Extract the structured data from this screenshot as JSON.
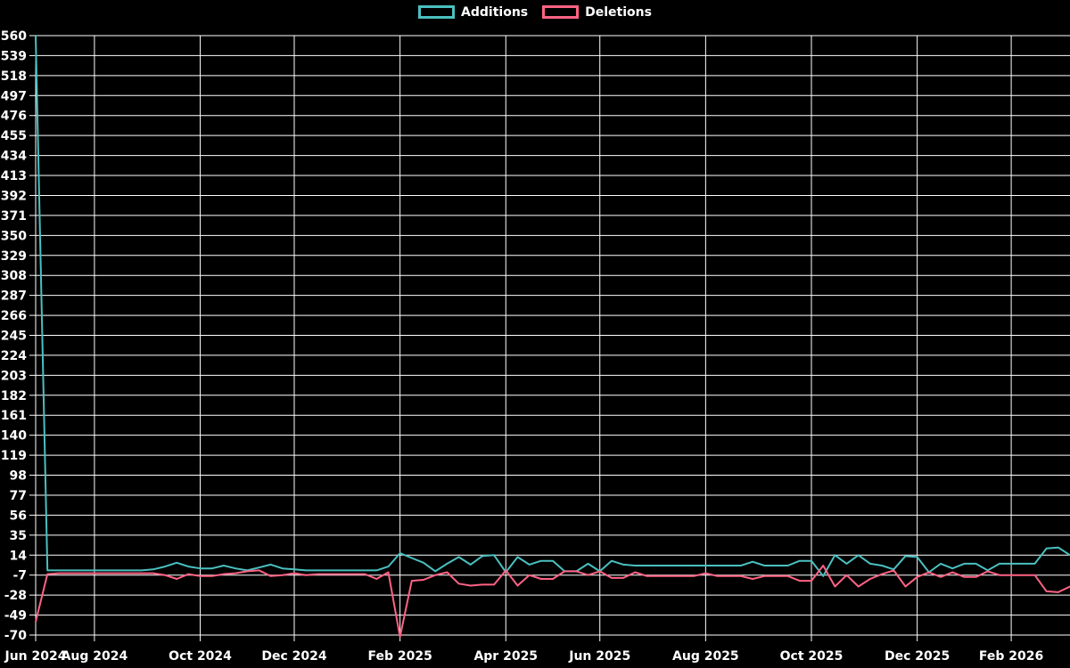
{
  "chart_data": {
    "type": "line",
    "title": "",
    "legend_position": "top",
    "grid": true,
    "background_color": "#000000",
    "grid_color": "#ffffff",
    "text_color": "#ffffff",
    "x_axis": {
      "unit": "week",
      "total_weeks": 89,
      "tick_labels": [
        "Jun 2024",
        "Aug 2024",
        "Oct 2024",
        "Dec 2024",
        "Feb 2025",
        "Apr 2025",
        "Jun 2025",
        "Aug 2025",
        "Oct 2025",
        "Dec 2025",
        "Feb 2026"
      ],
      "tick_weeks": [
        0,
        5,
        14,
        22,
        31,
        40,
        48,
        57,
        66,
        75,
        83
      ]
    },
    "y_axis": {
      "min": -70,
      "max": 560,
      "step": 21,
      "ticks": [
        560,
        539,
        518,
        497,
        476,
        455,
        434,
        413,
        392,
        371,
        350,
        329,
        308,
        287,
        266,
        245,
        224,
        203,
        182,
        161,
        140,
        119,
        98,
        77,
        56,
        35,
        14,
        -7,
        -28,
        -49,
        -70
      ]
    },
    "series": [
      {
        "name": "Additions",
        "color": "#4bc0c0",
        "values": [
          560,
          -2,
          -2,
          -2,
          -2,
          -2,
          -2,
          -2,
          -2,
          -2,
          -1,
          2,
          6,
          2,
          0,
          0,
          3,
          0,
          -2,
          1,
          4,
          0,
          -1,
          -2,
          -2,
          -2,
          -2,
          -2,
          -2,
          -2,
          2,
          16,
          11,
          6,
          -3,
          5,
          12,
          4,
          13,
          14,
          -4,
          12,
          4,
          8,
          8,
          -3,
          -3,
          5,
          -3,
          8,
          4,
          3,
          3,
          3,
          3,
          3,
          3,
          3,
          3,
          3,
          3,
          7,
          3,
          3,
          3,
          8,
          8,
          -8,
          14,
          5,
          14,
          5,
          3,
          -1,
          13,
          12,
          -4,
          5,
          0,
          5,
          5,
          -2,
          5,
          5,
          5,
          5,
          21,
          22,
          14
        ]
      },
      {
        "name": "Deletions",
        "color": "#ff6384",
        "values": [
          -56,
          -6,
          -5,
          -5,
          -5,
          -5,
          -5,
          -5,
          -5,
          -5,
          -5,
          -7,
          -11,
          -6,
          -8,
          -8,
          -6,
          -5,
          -3,
          -2,
          -8,
          -7,
          -5,
          -7,
          -6,
          -6,
          -6,
          -6,
          -6,
          -11,
          -4,
          -72,
          -13,
          -12,
          -7,
          -4,
          -16,
          -18,
          -17,
          -17,
          -2,
          -18,
          -7,
          -11,
          -11,
          -3,
          -3,
          -7,
          -3,
          -10,
          -10,
          -4,
          -8,
          -8,
          -8,
          -8,
          -8,
          -5,
          -8,
          -8,
          -8,
          -11,
          -8,
          -8,
          -8,
          -13,
          -13,
          3,
          -19,
          -7,
          -19,
          -11,
          -6,
          -2,
          -19,
          -9,
          -4,
          -9,
          -4,
          -9,
          -9,
          -3,
          -7,
          -7,
          -7,
          -7,
          -24,
          -25,
          -19
        ]
      }
    ]
  }
}
